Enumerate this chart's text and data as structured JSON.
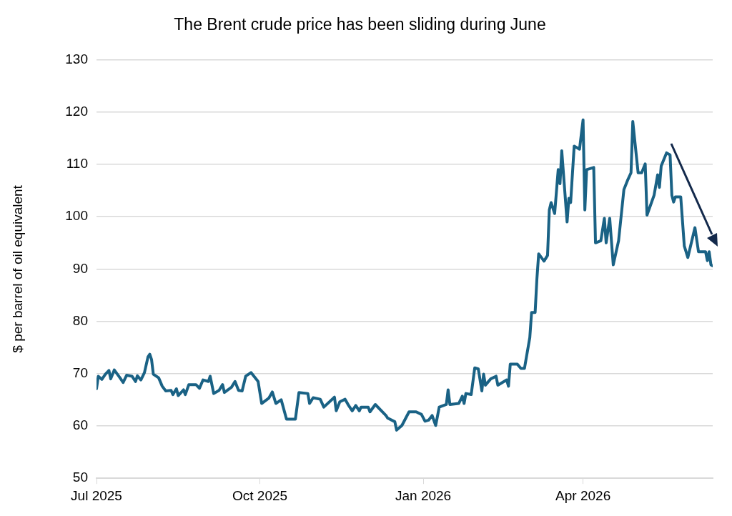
{
  "chart_data": {
    "type": "line",
    "title": "The Brent crude price has been sliding during June",
    "ylabel": "$ per barrel of oil equivalent",
    "x": [
      "2025-07-01",
      "2025-07-02",
      "2025-07-04",
      "2025-07-06",
      "2025-07-08",
      "2025-07-09",
      "2025-07-11",
      "2025-07-14",
      "2025-07-16",
      "2025-07-18",
      "2025-07-21",
      "2025-07-23",
      "2025-07-24",
      "2025-07-26",
      "2025-07-28",
      "2025-07-30",
      "2025-07-31",
      "2025-08-01",
      "2025-08-02",
      "2025-08-05",
      "2025-08-07",
      "2025-08-09",
      "2025-08-12",
      "2025-08-13",
      "2025-08-15",
      "2025-08-16",
      "2025-08-19",
      "2025-08-20",
      "2025-08-22",
      "2025-08-26",
      "2025-08-28",
      "2025-08-30",
      "2025-09-02",
      "2025-09-03",
      "2025-09-05",
      "2025-09-08",
      "2025-09-10",
      "2025-09-11",
      "2025-09-15",
      "2025-09-17",
      "2025-09-19",
      "2025-09-21",
      "2025-09-23",
      "2025-09-26",
      "2025-09-30",
      "2025-10-02",
      "2025-10-06",
      "2025-10-08",
      "2025-10-10",
      "2025-10-13",
      "2025-10-16",
      "2025-10-21",
      "2025-10-23",
      "2025-10-28",
      "2025-10-29",
      "2025-10-31",
      "2025-11-04",
      "2025-11-06",
      "2025-11-12",
      "2025-11-13",
      "2025-11-15",
      "2025-11-18",
      "2025-11-20",
      "2025-11-22",
      "2025-11-24",
      "2025-11-26",
      "2025-11-27",
      "2025-12-01",
      "2025-12-02",
      "2025-12-05",
      "2025-12-11",
      "2025-12-12",
      "2025-12-16",
      "2025-12-17",
      "2025-12-20",
      "2025-12-24",
      "2025-12-28",
      "2025-12-31",
      "2026-01-02",
      "2026-01-04",
      "2026-01-06",
      "2026-01-08",
      "2026-01-10",
      "2026-01-14",
      "2026-01-15",
      "2026-01-16",
      "2026-01-21",
      "2026-01-23",
      "2026-01-24",
      "2026-01-25",
      "2026-01-28",
      "2026-01-30",
      "2026-02-01",
      "2026-02-03",
      "2026-02-04",
      "2026-02-05",
      "2026-02-08",
      "2026-02-11",
      "2026-02-12",
      "2026-02-17",
      "2026-02-18",
      "2026-02-19",
      "2026-02-23",
      "2026-02-25",
      "2026-02-27",
      "2026-03-02",
      "2026-03-03",
      "2026-03-05",
      "2026-03-06",
      "2026-03-07",
      "2026-03-10",
      "2026-03-12",
      "2026-03-13",
      "2026-03-14",
      "2026-03-16",
      "2026-03-18",
      "2026-03-19",
      "2026-03-20",
      "2026-03-23",
      "2026-03-24",
      "2026-03-25",
      "2026-03-27",
      "2026-03-30",
      "2026-04-01",
      "2026-04-02",
      "2026-04-03",
      "2026-04-07",
      "2026-04-08",
      "2026-04-11",
      "2026-04-13",
      "2026-04-14",
      "2026-04-16",
      "2026-04-18",
      "2026-04-21",
      "2026-04-24",
      "2026-04-26",
      "2026-04-28",
      "2026-04-29",
      "2026-05-02",
      "2026-05-04",
      "2026-05-06",
      "2026-05-07",
      "2026-05-11",
      "2026-05-13",
      "2026-05-14",
      "2026-05-15",
      "2026-05-18",
      "2026-05-20",
      "2026-05-21",
      "2026-05-22",
      "2026-05-23",
      "2026-05-26",
      "2026-05-28",
      "2026-05-30",
      "2026-06-03",
      "2026-06-05",
      "2026-06-09",
      "2026-06-10",
      "2026-06-11",
      "2026-06-12",
      "2026-06-13"
    ],
    "series": [
      {
        "color": "#1a6285",
        "values": [
          67.1,
          69.5,
          68.9,
          69.9,
          70.6,
          69.0,
          70.7,
          69.3,
          68.3,
          69.7,
          69.5,
          68.5,
          69.6,
          68.8,
          70.2,
          73.2,
          73.7,
          72.7,
          69.9,
          69.2,
          67.6,
          66.7,
          66.8,
          66.0,
          67.1,
          65.8,
          66.9,
          66.0,
          67.9,
          67.9,
          67.2,
          68.8,
          68.5,
          69.5,
          66.2,
          66.8,
          67.9,
          66.4,
          67.4,
          68.5,
          66.8,
          66.7,
          69.5,
          70.2,
          68.5,
          64.3,
          65.3,
          66.5,
          64.3,
          65.0,
          61.3,
          61.3,
          66.4,
          66.2,
          64.3,
          65.4,
          65.1,
          63.6,
          65.5,
          62.9,
          64.6,
          65.1,
          63.9,
          62.9,
          63.9,
          62.9,
          63.6,
          63.6,
          62.7,
          64.1,
          62.0,
          61.5,
          60.8,
          59.2,
          60.1,
          62.7,
          62.7,
          62.2,
          60.9,
          61.1,
          62.0,
          60.1,
          63.6,
          64.1,
          66.9,
          64.1,
          64.3,
          65.7,
          64.3,
          66.2,
          66.0,
          71.1,
          70.9,
          66.7,
          69.9,
          67.8,
          69.0,
          69.5,
          67.8,
          68.8,
          67.6,
          71.8,
          71.8,
          71.0,
          71.0,
          76.9,
          81.7,
          81.7,
          88.1,
          92.9,
          91.5,
          92.6,
          101.3,
          102.7,
          100.6,
          109.0,
          106.3,
          112.6,
          99.0,
          103.5,
          102.7,
          113.5,
          112.9,
          118.5,
          101.3,
          109.0,
          109.4,
          95.0,
          95.4,
          99.7,
          95.0,
          99.7,
          90.8,
          95.4,
          105.2,
          106.9,
          108.4,
          118.2,
          108.4,
          108.4,
          110.1,
          100.3,
          104.1,
          108.0,
          105.6,
          109.7,
          112.2,
          111.8,
          104.1,
          102.8,
          103.8,
          103.8,
          94.4,
          92.2,
          97.9,
          93.3,
          93.3,
          91.6,
          93.3,
          90.8,
          90.6
        ]
      }
    ],
    "xlim": [
      "2025-07-01",
      "2026-06-13"
    ],
    "xticks": [
      {
        "value": "2025-07-01",
        "label": "Jul 2025"
      },
      {
        "value": "2025-10-01",
        "label": "Oct 2025"
      },
      {
        "value": "2026-01-01",
        "label": "Jan 2026"
      },
      {
        "value": "2026-04-01",
        "label": "Apr 2026"
      }
    ],
    "ylim": [
      50,
      130
    ],
    "yticks": [
      50,
      60,
      70,
      80,
      90,
      100,
      110,
      120,
      130
    ],
    "grid": "y",
    "legend": false,
    "marker": "none",
    "line_style": "solid"
  }
}
